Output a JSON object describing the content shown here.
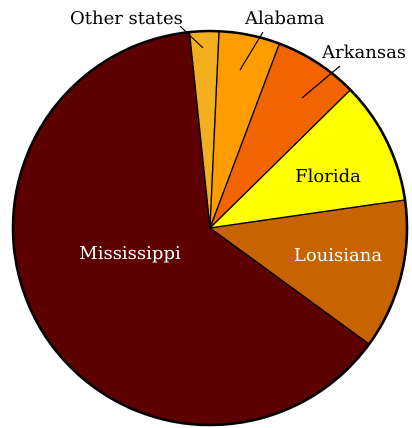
{
  "chart_data": {
    "type": "pie",
    "title": "",
    "start_angle_deg": 264,
    "direction": "clockwise",
    "slices": [
      {
        "label": "Other states",
        "value": 2.4,
        "color": "#f2b01e",
        "label_color": "#000000"
      },
      {
        "label": "Alabama",
        "value": 5.0,
        "color": "#ff9d00",
        "label_color": "#000000"
      },
      {
        "label": "Arkansas",
        "value": 6.9,
        "color": "#f26400",
        "label_color": "#000000"
      },
      {
        "label": "Florida",
        "value": 10.1,
        "color": "#ffff00",
        "label_color": "#000000"
      },
      {
        "label": "Louisiana",
        "value": 12.3,
        "color": "#c76300",
        "label_color": "#ffffff"
      },
      {
        "label": "Mississippi",
        "value": 63.3,
        "color": "#5c0000",
        "label_color": "#ffffff"
      }
    ]
  }
}
